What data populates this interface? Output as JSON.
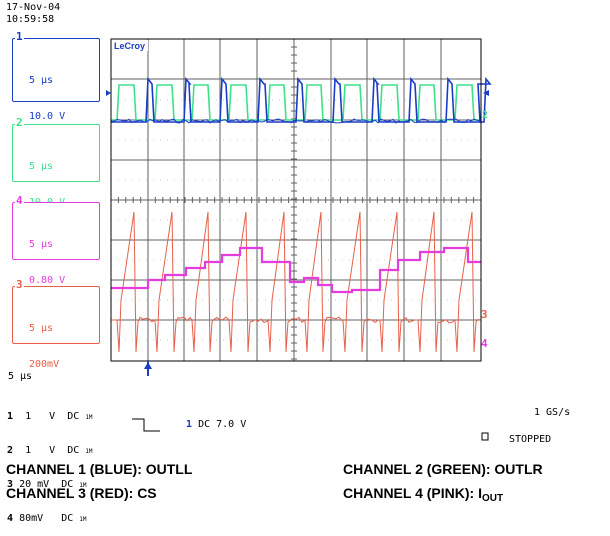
{
  "timestamp": {
    "date": "17-Nov-04",
    "time": "10:59:58"
  },
  "brand": "LeCroy",
  "channels": [
    {
      "num": "1",
      "time_div": "5 μs",
      "volt_div": "10.0 V",
      "color": "#1a3cc8"
    },
    {
      "num": "2",
      "time_div": "5 μs",
      "volt_div": "10.0 V",
      "color": "#3ee08a"
    },
    {
      "num": "4",
      "time_div": "5 μs",
      "volt_div": "0.80 V",
      "color": "#e53ce0"
    },
    {
      "num": "3",
      "time_div": "5 μs",
      "volt_div": "200mV",
      "color": "#e8604a"
    }
  ],
  "timebase": "5 μs",
  "coupling_rows": [
    {
      "num": "1",
      "volts": "1   V",
      "coupling": "DC",
      "marker": "1M"
    },
    {
      "num": "2",
      "volts": "1   V",
      "coupling": "DC",
      "marker": "1M"
    },
    {
      "num": "3",
      "volts": "20 mV",
      "coupling": "DC",
      "marker": "1M"
    },
    {
      "num": "4",
      "volts": "80mV",
      "coupling": "DC",
      "marker": "1M"
    }
  ],
  "trigger": {
    "channel": "1",
    "text": "DC 7.0 V"
  },
  "sample_rate": "1 GS/s",
  "status": "STOPPED",
  "trace_markers": {
    "ch1": "1",
    "ch2": "2",
    "ch3": "3",
    "ch4": "4"
  },
  "captions": {
    "ch1": "CHANNEL 1 (BLUE): OUTLL",
    "ch2": "CHANNEL 2 (GREEN): OUTLR",
    "ch3": "CHANNEL 3 (RED): CS",
    "ch4_prefix": "CHANNEL 4 (PINK): I",
    "ch4_sub": "OUT"
  },
  "colors": {
    "blue": "#1a3cc8",
    "green": "#3ee08a",
    "red": "#e8604a",
    "pink": "#e53ce0",
    "grid": "#606060"
  }
}
